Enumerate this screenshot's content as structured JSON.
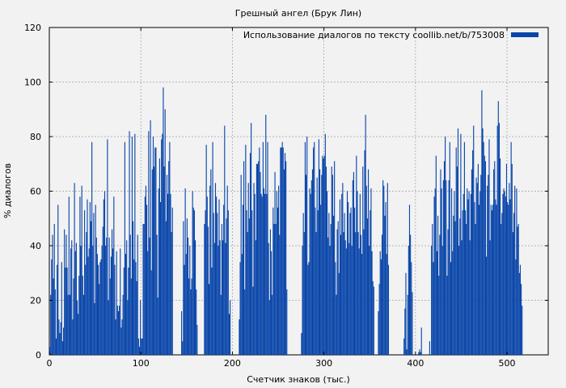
{
  "chart_data": {
    "type": "bar",
    "title": "Грешный ангел (Брук Лин)",
    "xlabel": "Счетчик знаков (тыс.)",
    "ylabel": "% диалогов",
    "xlim": [
      0,
      545
    ],
    "ylim": [
      0,
      120
    ],
    "xticks": [
      0,
      100,
      200,
      300,
      400,
      500
    ],
    "yticks": [
      0,
      20,
      40,
      60,
      80,
      100,
      120
    ],
    "grid": true,
    "legend_position": "top-right",
    "bar_color": "#0a46aa",
    "series": [
      {
        "name": "Использование диалогов по тексту coollib.net/b/753008",
        "step_k": 1,
        "start_k": 0,
        "values": [
          3,
          22,
          35,
          44,
          28,
          48,
          24,
          6,
          33,
          55,
          13,
          8,
          12,
          34,
          5,
          10,
          46,
          32,
          44,
          32,
          22,
          58,
          22,
          39,
          42,
          13,
          28,
          63,
          38,
          41,
          20,
          15,
          29,
          58,
          40,
          62,
          29,
          22,
          53,
          33,
          45,
          57,
          36,
          39,
          56,
          49,
          78,
          40,
          52,
          19,
          55,
          43,
          37,
          33,
          26,
          34,
          35,
          40,
          47,
          57,
          60,
          40,
          43,
          79,
          20,
          43,
          28,
          36,
          46,
          39,
          58,
          33,
          13,
          38,
          18,
          16,
          18,
          39,
          10,
          13,
          22,
          32,
          78,
          37,
          42,
          20,
          32,
          82,
          44,
          28,
          80,
          49,
          35,
          81,
          34,
          27,
          44,
          6,
          3,
          20,
          6,
          6,
          48,
          48,
          58,
          62,
          55,
          38,
          82,
          43,
          86,
          31,
          68,
          80,
          69,
          76,
          76,
          44,
          21,
          61,
          72,
          56,
          79,
          81,
          98,
          69,
          90,
          49,
          66,
          59,
          71,
          78,
          59,
          45,
          54,
          0,
          0,
          0,
          0,
          0,
          0,
          0,
          0,
          0,
          16,
          5,
          49,
          33,
          61,
          37,
          50,
          43,
          28,
          40,
          24,
          28,
          60,
          54,
          53,
          42,
          24,
          11,
          0,
          0,
          0,
          0,
          0,
          0,
          0,
          48,
          53,
          77,
          58,
          47,
          26,
          62,
          68,
          32,
          78,
          52,
          41,
          63,
          58,
          52,
          40,
          57,
          42,
          22,
          48,
          42,
          55,
          84,
          41,
          50,
          62,
          53,
          15,
          20,
          0,
          0,
          0,
          0,
          0,
          0,
          0,
          0,
          0,
          13,
          34,
          66,
          37,
          55,
          71,
          24,
          77,
          53,
          45,
          63,
          50,
          74,
          85,
          53,
          25,
          63,
          59,
          42,
          70,
          70,
          71,
          76,
          67,
          59,
          58,
          78,
          61,
          59,
          88,
          59,
          78,
          41,
          20,
          46,
          38,
          22,
          54,
          48,
          67,
          48,
          60,
          54,
          62,
          44,
          76,
          76,
          78,
          76,
          68,
          74,
          71,
          24,
          0,
          0,
          0,
          0,
          0,
          0,
          0,
          0,
          0,
          0,
          0,
          0,
          0,
          0,
          0,
          8,
          40,
          52,
          45,
          78,
          66,
          80,
          33,
          34,
          61,
          59,
          64,
          68,
          76,
          78,
          54,
          45,
          65,
          53,
          79,
          68,
          55,
          66,
          73,
          72,
          73,
          81,
          69,
          60,
          43,
          52,
          40,
          48,
          69,
          66,
          51,
          71,
          34,
          22,
          46,
          49,
          30,
          57,
          44,
          59,
          63,
          45,
          52,
          42,
          39,
          60,
          56,
          41,
          52,
          54,
          40,
          64,
          67,
          54,
          45,
          73,
          60,
          45,
          39,
          59,
          44,
          37,
          69,
          46,
          75,
          88,
          62,
          50,
          68,
          40,
          53,
          61,
          38,
          27,
          25,
          0,
          0,
          0,
          0,
          16,
          26,
          38,
          35,
          44,
          64,
          62,
          51,
          56,
          37,
          63,
          33,
          0,
          0,
          0,
          0,
          0,
          0,
          0,
          0,
          0,
          0,
          0,
          0,
          0,
          0,
          0,
          0,
          6,
          17,
          30,
          2,
          22,
          40,
          55,
          44,
          34,
          23,
          0,
          0,
          0,
          0,
          0,
          0,
          1,
          2,
          1,
          10,
          0,
          0,
          0,
          0,
          0,
          0,
          0,
          0,
          5,
          0,
          40,
          48,
          34,
          58,
          61,
          73,
          38,
          51,
          29,
          44,
          68,
          61,
          40,
          64,
          71,
          80,
          64,
          29,
          46,
          64,
          78,
          34,
          61,
          38,
          51,
          60,
          49,
          76,
          69,
          83,
          40,
          50,
          81,
          42,
          53,
          59,
          78,
          53,
          48,
          61,
          57,
          60,
          42,
          59,
          68,
          75,
          84,
          56,
          48,
          65,
          63,
          70,
          55,
          60,
          66,
          97,
          83,
          78,
          73,
          71,
          36,
          62,
          66,
          79,
          42,
          55,
          53,
          55,
          68,
          71,
          57,
          55,
          84,
          93,
          85,
          72,
          48,
          52,
          59,
          61,
          60,
          58,
          70,
          56,
          55,
          63,
          57,
          78,
          70,
          45,
          52,
          62,
          35,
          61,
          47,
          48,
          30,
          33,
          26,
          18
        ]
      }
    ]
  }
}
